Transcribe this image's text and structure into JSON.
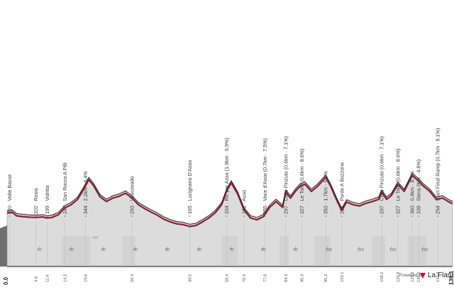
{
  "chart_data": {
    "type": "area",
    "title": "",
    "xlabel": "",
    "ylabel": "",
    "start_km_label": "0.0",
    "end_km_label": "139.1",
    "inner_altitude_label": "300",
    "xlim": [
      0,
      139.1
    ],
    "ylim": [
      100,
      420
    ],
    "x_ticks": [
      10,
      20,
      30,
      40,
      50,
      60,
      70,
      80,
      90,
      100,
      110,
      120,
      130
    ],
    "waypoints": [
      {
        "km": 0.8,
        "dist": "",
        "label": "220 · Volte Basse"
      },
      {
        "km": 9.0,
        "dist": "4.8",
        "label": "202 · Rosia"
      },
      {
        "km": 12.5,
        "dist": "11.6",
        "label": "199 · Vidritta"
      },
      {
        "km": 18.0,
        "dist": "14.2",
        "label": "247 · San Rocco A Pilli"
      },
      {
        "km": 24.5,
        "dist": "19.6",
        "label": "344 · 2.2km · 6.4%"
      },
      {
        "km": 39.0,
        "dist": "26.3",
        "label": "293 · Vescovado"
      },
      {
        "km": 57.0,
        "dist": "39.5",
        "label": "165 · Lucignano D'Asso"
      },
      {
        "km": 68.5,
        "dist": "58.4",
        "label": "334 · Rv. per Asso (1.9km · 6.9%)"
      },
      {
        "km": 74.0,
        "dist": "70.3",
        "label": "191 · Asso"
      },
      {
        "km": 80.5,
        "dist": "77.8",
        "label": "255 · Voce d'Asso (0.7km · 7.5%)"
      },
      {
        "km": 87.0,
        "dist": "84.3",
        "label": "297 · Colle Pinzuto (0.6km · 7.1%)"
      },
      {
        "km": 92.0,
        "dist": "90.3",
        "label": "327 · Le Tolfe (0.6km · 8.6%)"
      },
      {
        "km": 99.5,
        "dist": "95.3",
        "label": "353 · 1.7km · 5.9%"
      },
      {
        "km": 104.5,
        "dist": "103.1",
        "label": "227 · Ponte A Bozzone"
      },
      {
        "km": 117.0,
        "dist": "108.2",
        "label": "297 · Colle Pinzuto (0.6km · 7.1%)"
      },
      {
        "km": 122.0,
        "dist": "120.8",
        "label": "327 · Le Tolfe (0.6km · 8.6%)"
      },
      {
        "km": 126.5,
        "dist": "125.8",
        "label": "360 · 0.4km · 8.1%"
      },
      {
        "km": 128.5,
        "dist": "130.0",
        "label": "339 · Siena (Km · 4.8%)"
      },
      {
        "km": 134.5,
        "dist": "132.2",
        "label": "254 · Start Final Ramp (0.7km · 9.1%)"
      }
    ],
    "profile": {
      "x": [
        0,
        1.5,
        3,
        5,
        7,
        9,
        11,
        12.5,
        14,
        16,
        18,
        20,
        22,
        24,
        25.5,
        27,
        29,
        31,
        33,
        35,
        37,
        39,
        41,
        43,
        45,
        47,
        49,
        51,
        53,
        55,
        57,
        59,
        61,
        63,
        65,
        67,
        68.5,
        70,
        72,
        74,
        76,
        78,
        80,
        82,
        84,
        86,
        87,
        88.5,
        90,
        91.5,
        93,
        95,
        97,
        99.5,
        101,
        103,
        104.5,
        106,
        108,
        110,
        112,
        114,
        116,
        117,
        118.5,
        120,
        122,
        124,
        126.5,
        128.5,
        130,
        132,
        134,
        136,
        138,
        139.1
      ],
      "y": [
        218,
        222,
        208,
        205,
        203,
        202,
        204,
        200,
        202,
        212,
        238,
        250,
        270,
        310,
        344,
        322,
        280,
        262,
        275,
        282,
        293,
        275,
        250,
        235,
        222,
        210,
        195,
        185,
        178,
        175,
        168,
        172,
        185,
        200,
        220,
        250,
        300,
        332,
        290,
        230,
        200,
        193,
        205,
        240,
        262,
        240,
        297,
        275,
        300,
        320,
        327,
        300,
        320,
        353,
        320,
        265,
        228,
        260,
        250,
        245,
        255,
        262,
        270,
        297,
        270,
        285,
        327,
        300,
        360,
        339,
        320,
        300,
        270,
        275,
        260,
        254
      ]
    },
    "colors": {
      "terrain": "#dcdcdc",
      "route": "#8b1e3f",
      "band": "#fbf8e6",
      "axis": "#222222",
      "cliff": "#707070"
    }
  }
}
